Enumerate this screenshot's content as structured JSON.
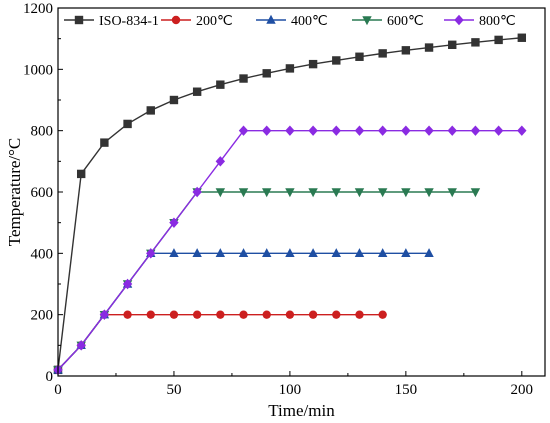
{
  "chart_data": {
    "type": "line",
    "xlabel": "Time/min",
    "ylabel": "Temperature/°C",
    "xlim": [
      0,
      210
    ],
    "ylim": [
      0,
      1200
    ],
    "xticks": [
      0,
      50,
      100,
      150,
      200
    ],
    "yticks": [
      0,
      200,
      400,
      600,
      800,
      1000,
      1200
    ],
    "grid": false,
    "legend_position": "top",
    "series": [
      {
        "name": "ISO-834-1",
        "color": "#333333",
        "marker": "square",
        "x": [
          0,
          10,
          20,
          30,
          40,
          50,
          60,
          70,
          80,
          90,
          100,
          110,
          120,
          130,
          140,
          150,
          160,
          170,
          180,
          190,
          200
        ],
        "y": [
          20,
          659,
          761,
          822,
          866,
          900,
          927,
          950,
          970,
          987,
          1003,
          1017,
          1029,
          1041,
          1052,
          1062,
          1071,
          1080,
          1088,
          1096,
          1103
        ]
      },
      {
        "name": "200℃",
        "color": "#cc1f1f",
        "marker": "circle",
        "x": [
          0,
          10,
          20,
          30,
          40,
          50,
          60,
          70,
          80,
          90,
          100,
          110,
          120,
          130,
          140
        ],
        "y": [
          20,
          100,
          200,
          200,
          200,
          200,
          200,
          200,
          200,
          200,
          200,
          200,
          200,
          200,
          200
        ]
      },
      {
        "name": "400℃",
        "color": "#1f4fa3",
        "marker": "triangle-up",
        "x": [
          0,
          10,
          20,
          30,
          40,
          50,
          60,
          70,
          80,
          90,
          100,
          110,
          120,
          130,
          140,
          150,
          160
        ],
        "y": [
          20,
          100,
          200,
          300,
          400,
          400,
          400,
          400,
          400,
          400,
          400,
          400,
          400,
          400,
          400,
          400,
          400
        ]
      },
      {
        "name": "600℃",
        "color": "#2a7a52",
        "marker": "triangle-down",
        "x": [
          0,
          10,
          20,
          30,
          40,
          50,
          60,
          70,
          80,
          90,
          100,
          110,
          120,
          130,
          140,
          150,
          160,
          170,
          180
        ],
        "y": [
          20,
          100,
          200,
          300,
          400,
          500,
          600,
          600,
          600,
          600,
          600,
          600,
          600,
          600,
          600,
          600,
          600,
          600,
          600
        ]
      },
      {
        "name": "800℃",
        "color": "#8a2be2",
        "marker": "diamond",
        "x": [
          0,
          10,
          20,
          30,
          40,
          50,
          60,
          70,
          80,
          90,
          100,
          110,
          120,
          130,
          140,
          150,
          160,
          170,
          180,
          190,
          200
        ],
        "y": [
          20,
          100,
          200,
          300,
          400,
          500,
          600,
          700,
          800,
          800,
          800,
          800,
          800,
          800,
          800,
          800,
          800,
          800,
          800,
          800,
          800
        ]
      }
    ]
  }
}
